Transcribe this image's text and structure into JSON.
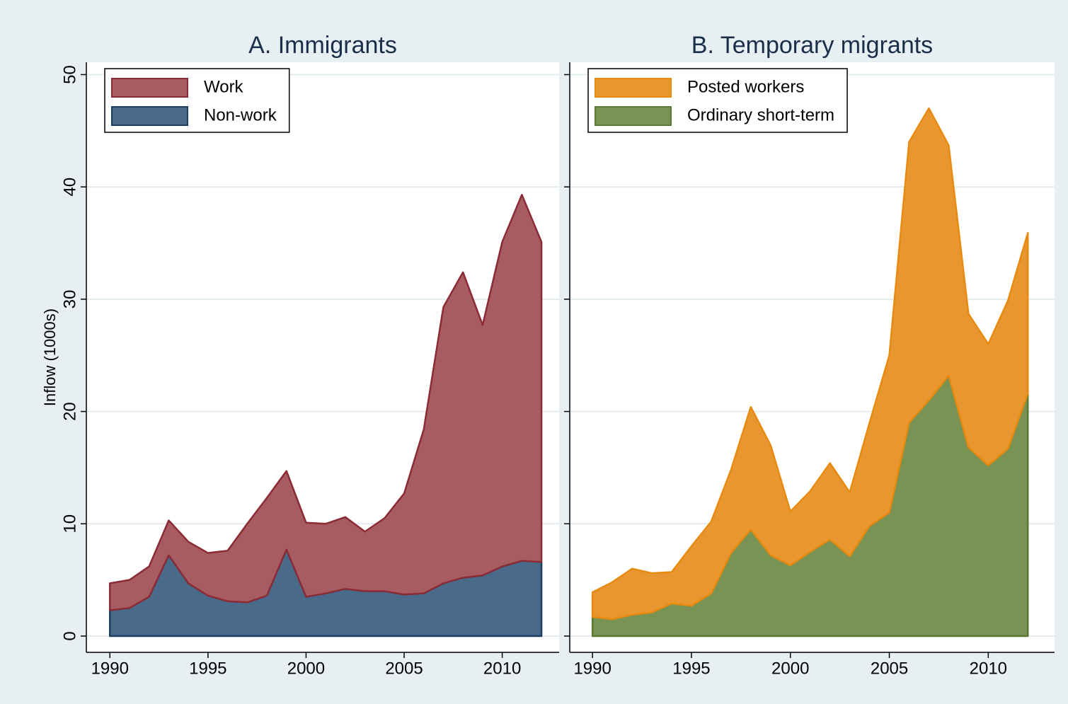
{
  "chart_data": [
    {
      "type": "area",
      "stacked": true,
      "title": "A. Immigrants",
      "y_label": "Inflow (1000s)",
      "x": [
        1990,
        1991,
        1992,
        1993,
        1994,
        1995,
        1996,
        1997,
        1998,
        1999,
        2000,
        2001,
        2002,
        2003,
        2004,
        2005,
        2006,
        2007,
        2008,
        2009,
        2010,
        2011,
        2012
      ],
      "series": [
        {
          "name": "Non-work",
          "color": "#4a6a8a",
          "line_color": "#1c3f61",
          "values": [
            2.3,
            2.5,
            3.5,
            7.2,
            4.7,
            3.6,
            3.1,
            3.0,
            3.6,
            7.7,
            3.5,
            3.8,
            4.2,
            4.0,
            4.0,
            3.7,
            3.8,
            4.7,
            5.2,
            5.4,
            6.2,
            6.7,
            6.6
          ]
        },
        {
          "name": "Work",
          "color": "#a65c60",
          "line_color": "#8b2b35",
          "values": [
            2.4,
            2.5,
            2.7,
            3.1,
            3.7,
            3.8,
            4.5,
            7.0,
            8.7,
            7.0,
            6.6,
            6.2,
            6.4,
            5.3,
            6.5,
            9.0,
            14.6,
            24.6,
            27.2,
            22.3,
            28.9,
            32.6,
            28.5
          ]
        }
      ],
      "xlim": [
        1988.8,
        2012.9
      ],
      "xticks": [
        1990,
        1995,
        2000,
        2005,
        2010
      ],
      "ylim": [
        -1.45,
        51.1
      ],
      "yticks": [
        0,
        10,
        20,
        30,
        40,
        50
      ],
      "ytick_labels": true,
      "grid": true,
      "legend": "top-left"
    },
    {
      "type": "area",
      "stacked": true,
      "title": "B. Temporary migrants",
      "x": [
        1990,
        1991,
        1992,
        1993,
        1994,
        1995,
        1996,
        1997,
        1998,
        1999,
        2000,
        2001,
        2002,
        2003,
        2004,
        2005,
        2006,
        2007,
        2008,
        2009,
        2010,
        2011,
        2012
      ],
      "series": [
        {
          "name": "Ordinary short-term",
          "color": "#799354",
          "line_color": "#5a7a34",
          "values": [
            1.7,
            1.5,
            1.9,
            2.1,
            2.9,
            2.7,
            3.8,
            7.4,
            9.5,
            7.2,
            6.3,
            7.5,
            8.6,
            7.1,
            9.8,
            11.0,
            19.0,
            21.0,
            23.2,
            16.8,
            15.2,
            16.7,
            21.6
          ]
        },
        {
          "name": "Posted workers",
          "color": "#e8962f",
          "line_color": "#e88a10",
          "values": [
            2.2,
            3.3,
            4.1,
            3.5,
            2.8,
            5.3,
            6.4,
            7.4,
            10.9,
            9.8,
            4.8,
            5.4,
            6.8,
            5.7,
            9.2,
            14.0,
            25.0,
            26.0,
            20.5,
            11.9,
            10.8,
            13.2,
            14.3
          ]
        }
      ],
      "xlim": [
        1988.85,
        2013.35
      ],
      "xticks": [
        1990,
        1995,
        2000,
        2005,
        2010
      ],
      "ylim": [
        -1.45,
        51.1
      ],
      "yticks": [
        0,
        10,
        20,
        30,
        40,
        50
      ],
      "ytick_labels": false,
      "grid": true,
      "legend": "top-left"
    }
  ]
}
